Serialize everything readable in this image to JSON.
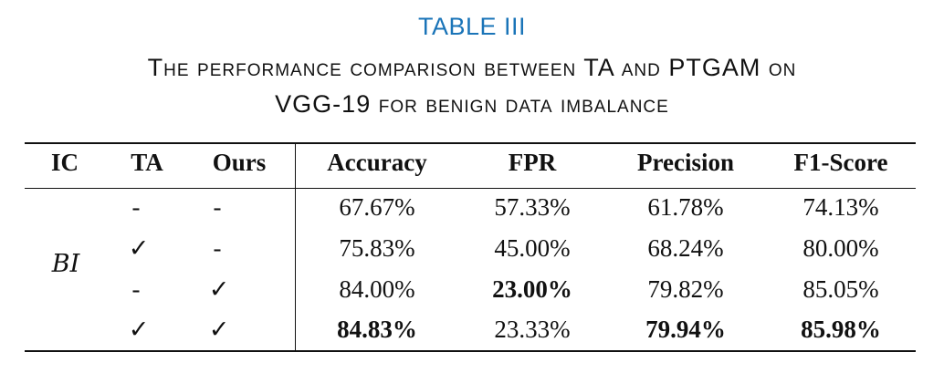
{
  "caption": {
    "label": "TABLE III",
    "title_line1": "The performance comparison between TA and PTGAM on",
    "title_line2": "VGG-19 for benign data imbalance"
  },
  "table": {
    "headers": {
      "ic": "IC",
      "ta": "TA",
      "ours": "Ours",
      "accuracy": "Accuracy",
      "fpr": "FPR",
      "precision": "Precision",
      "f1": "F1-Score"
    },
    "group_label": "BI",
    "rows": [
      {
        "ta": "-",
        "ours": "-",
        "accuracy": "67.67%",
        "fpr": "57.33%",
        "precision": "61.78%",
        "f1": "74.13%"
      },
      {
        "ta": "✓",
        "ours": "-",
        "accuracy": "75.83%",
        "fpr": "45.00%",
        "precision": "68.24%",
        "f1": "80.00%"
      },
      {
        "ta": "-",
        "ours": "✓",
        "accuracy": "84.00%",
        "fpr": "23.00%",
        "precision": "79.82%",
        "f1": "85.05%"
      },
      {
        "ta": "✓",
        "ours": "✓",
        "accuracy": "84.83%",
        "fpr": "23.33%",
        "precision": "79.94%",
        "f1": "85.98%"
      }
    ]
  }
}
